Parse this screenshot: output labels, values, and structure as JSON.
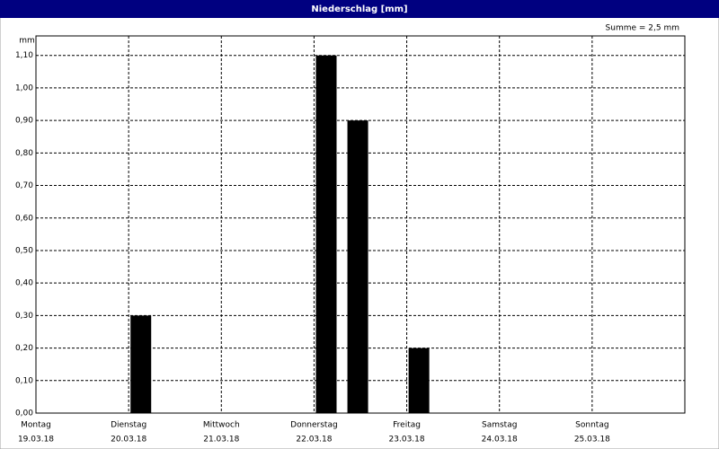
{
  "chart_data": {
    "type": "bar",
    "title": "Niederschlag [mm]",
    "y_label": "mm",
    "annotation": "Summe = 2,5 mm",
    "x": [
      1.02,
      3.02,
      3.36,
      4.02
    ],
    "values": [
      0.3,
      1.1,
      0.9,
      0.2
    ],
    "color": "#000000",
    "xlim": [
      0,
      7
    ],
    "xticks": [
      0,
      1,
      2,
      3,
      4,
      5,
      6
    ],
    "xtick_days": [
      "Montag",
      "Dienstag",
      "Mittwoch",
      "Donnerstag",
      "Freitag",
      "Samstag",
      "Sonntag"
    ],
    "xtick_dates": [
      "19.03.18",
      "20.03.18",
      "21.03.18",
      "22.03.18",
      "23.03.18",
      "24.03.18",
      "25.03.18"
    ],
    "ylim": [
      0,
      1.16
    ],
    "yticks": [
      {
        "value": 0,
        "label": "0,00"
      },
      {
        "value": 0.1,
        "label": "0,10"
      },
      {
        "value": 0.2,
        "label": "0,20"
      },
      {
        "value": 0.3,
        "label": "0,30"
      },
      {
        "value": 0.4,
        "label": "0,40"
      },
      {
        "value": 0.5,
        "label": "0,50"
      },
      {
        "value": 0.6,
        "label": "0,60"
      },
      {
        "value": 0.7,
        "label": "0,70"
      },
      {
        "value": 0.8,
        "label": "0,80"
      },
      {
        "value": 0.9,
        "label": "0,90"
      },
      {
        "value": 1.0,
        "label": "1,00"
      },
      {
        "value": 1.1,
        "label": "1,10"
      }
    ],
    "grid": true
  }
}
